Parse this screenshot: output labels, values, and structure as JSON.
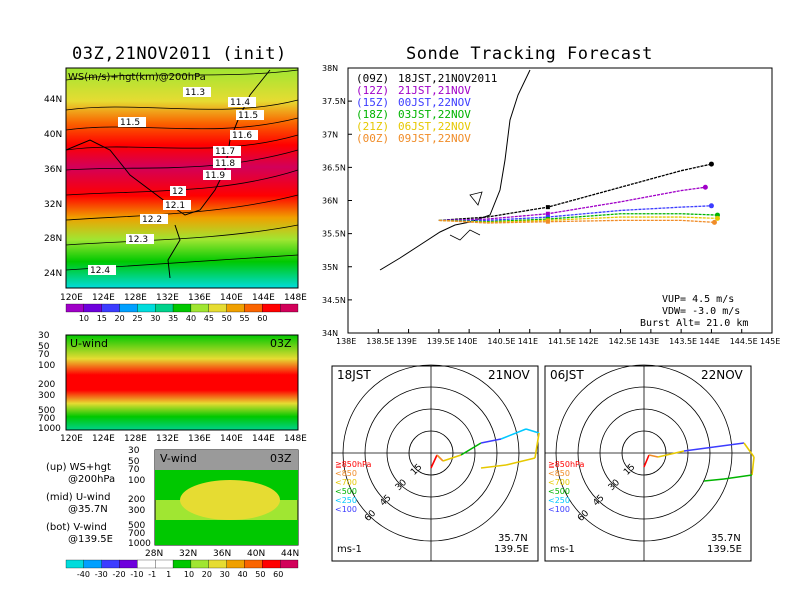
{
  "titles": {
    "left": "03Z,21NOV2011 (init)",
    "right": "Sonde Tracking Forecast"
  },
  "upper_map": {
    "label": "WS(m/s)+hgt(km)@200hPa",
    "x_ticks": [
      "120E",
      "124E",
      "128E",
      "132E",
      "136E",
      "140E",
      "144E",
      "148E"
    ],
    "y_ticks": [
      "24N",
      "28N",
      "32N",
      "36N",
      "40N",
      "44N"
    ],
    "contour_labels": [
      "11.3",
      "11.4",
      "11.5",
      "11.5",
      "11.6",
      "11.7",
      "11.8",
      "11.9",
      "12",
      "12.1",
      "12.2",
      "12.3",
      "12.4"
    ],
    "colorbar": [
      "10",
      "15",
      "20",
      "25",
      "30",
      "35",
      "40",
      "45",
      "50",
      "55",
      "60"
    ],
    "colorbar_colors": [
      "#a000c8",
      "#6e00dc",
      "#3c3cff",
      "#00a0ff",
      "#00dcdc",
      "#00d28c",
      "#00c800",
      "#a0e632",
      "#e6dc32",
      "#f0a000",
      "#fa6400",
      "#ff0000",
      "#d2005a"
    ]
  },
  "u_wind": {
    "label": "U-wind",
    "time": "03Z",
    "y_ticks": [
      "30",
      "50",
      "70",
      "100",
      "200",
      "300",
      "500",
      "700",
      "1000"
    ],
    "x_ticks": [
      "120E",
      "124E",
      "128E",
      "132E",
      "136E",
      "140E",
      "144E",
      "148E"
    ]
  },
  "v_wind": {
    "label": "V-wind",
    "time": "03Z",
    "y_ticks": [
      "30",
      "50",
      "70",
      "100",
      "200",
      "300",
      "500",
      "700",
      "1000"
    ],
    "x_ticks": [
      "28N",
      "32N",
      "36N",
      "40N",
      "44N"
    ],
    "colorbar": [
      "-40",
      "-30",
      "-20",
      "-10",
      "-1",
      "1",
      "10",
      "20",
      "30",
      "40",
      "50",
      "60"
    ]
  },
  "legend_notes": {
    "up1": "(up) WS+hgt",
    "up2": "@200hPa",
    "mid1": "(mid) U-wind",
    "mid2": "@35.7N",
    "bot1": "(bot) V-wind",
    "bot2": "@139.5E"
  },
  "tracking": {
    "x_ticks": [
      "138E",
      "138.5E",
      "139E",
      "139.5E",
      "140E",
      "140.5E",
      "141E",
      "141.5E",
      "142E",
      "142.5E",
      "143E",
      "143.5E",
      "144E",
      "144.5E",
      "145E"
    ],
    "y_ticks": [
      "34N",
      "34.5N",
      "35N",
      "35.5N",
      "36N",
      "36.5N",
      "37N",
      "37.5N",
      "38N"
    ],
    "launches": [
      {
        "utc": "(09Z)",
        "jst": "18JST,21NOV2011",
        "color": "#000000"
      },
      {
        "utc": "(12Z)",
        "jst": "21JST,21NOV",
        "color": "#a000c8"
      },
      {
        "utc": "(15Z)",
        "jst": "00JST,22NOV",
        "color": "#3c3cff"
      },
      {
        "utc": "(18Z)",
        "jst": "03JST,22NOV",
        "color": "#00b400"
      },
      {
        "utc": "(21Z)",
        "jst": "06JST,22NOV",
        "color": "#e6c800"
      },
      {
        "utc": "(00Z)",
        "jst": "09JST,22NOV",
        "color": "#f08c28"
      }
    ],
    "vup": "VUP= 4.5 m/s",
    "vdw": "VDW= -3.0 m/s",
    "burst": "Burst Alt= 21.0 km"
  },
  "chart_data": [
    {
      "type": "line",
      "title": "Sonde Tracking Forecast",
      "xlim": [
        138,
        145
      ],
      "ylim": [
        34,
        38
      ],
      "series": [
        {
          "name": "(09Z) 18JST,21NOV2011",
          "x": [
            139.5,
            140.3,
            141.3,
            142.5,
            143.5,
            144.0
          ],
          "y": [
            35.7,
            35.75,
            35.9,
            36.2,
            36.45,
            36.55
          ]
        },
        {
          "name": "(12Z) 21JST,21NOV",
          "x": [
            139.5,
            140.3,
            141.3,
            142.5,
            143.5,
            143.9
          ],
          "y": [
            35.7,
            35.72,
            35.8,
            35.98,
            36.15,
            36.2
          ]
        },
        {
          "name": "(15Z) 00JST,22NOV",
          "x": [
            139.5,
            140.3,
            141.3,
            142.5,
            143.5,
            144.0
          ],
          "y": [
            35.7,
            35.7,
            35.75,
            35.85,
            35.9,
            35.92
          ]
        },
        {
          "name": "(18Z) 03JST,22NOV",
          "x": [
            139.5,
            140.3,
            141.3,
            142.5,
            143.5,
            144.1
          ],
          "y": [
            35.7,
            35.68,
            35.72,
            35.8,
            35.8,
            35.78
          ]
        },
        {
          "name": "(21Z) 06JST,22NOV",
          "x": [
            139.5,
            140.3,
            141.3,
            142.5,
            143.5,
            144.1
          ],
          "y": [
            35.7,
            35.67,
            35.7,
            35.75,
            35.75,
            35.73
          ]
        },
        {
          "name": "(00Z) 09JST,22NOV",
          "x": [
            139.5,
            140.3,
            141.3,
            142.5,
            143.5,
            144.05
          ],
          "y": [
            35.7,
            35.66,
            35.68,
            35.7,
            35.7,
            35.67
          ]
        }
      ]
    }
  ],
  "polar": [
    {
      "time": "18JST",
      "date": "21NOV",
      "lat": "35.7N",
      "lon": "139.5E",
      "unit": "ms-1",
      "rings": [
        "15",
        "30",
        "45",
        "60"
      ],
      "levels": [
        {
          "label": "≧850hPa",
          "color": "#ff0000"
        },
        {
          "label": "<850",
          "color": "#f08c28"
        },
        {
          "label": "<700",
          "color": "#e6c800"
        },
        {
          "label": "<500",
          "color": "#00b400"
        },
        {
          "label": "<250",
          "color": "#00c8ff"
        },
        {
          "label": "<100",
          "color": "#3c3cff"
        }
      ]
    },
    {
      "time": "06JST",
      "date": "22NOV",
      "lat": "35.7N",
      "lon": "139.5E",
      "unit": "ms-1",
      "rings": [
        "15",
        "30",
        "45",
        "60"
      ],
      "levels": [
        {
          "label": "≧850hPa",
          "color": "#ff0000"
        },
        {
          "label": "<850",
          "color": "#f08c28"
        },
        {
          "label": "<700",
          "color": "#e6c800"
        },
        {
          "label": "<500",
          "color": "#00b400"
        },
        {
          "label": "<250",
          "color": "#00c8ff"
        },
        {
          "label": "<100",
          "color": "#3c3cff"
        }
      ]
    }
  ]
}
